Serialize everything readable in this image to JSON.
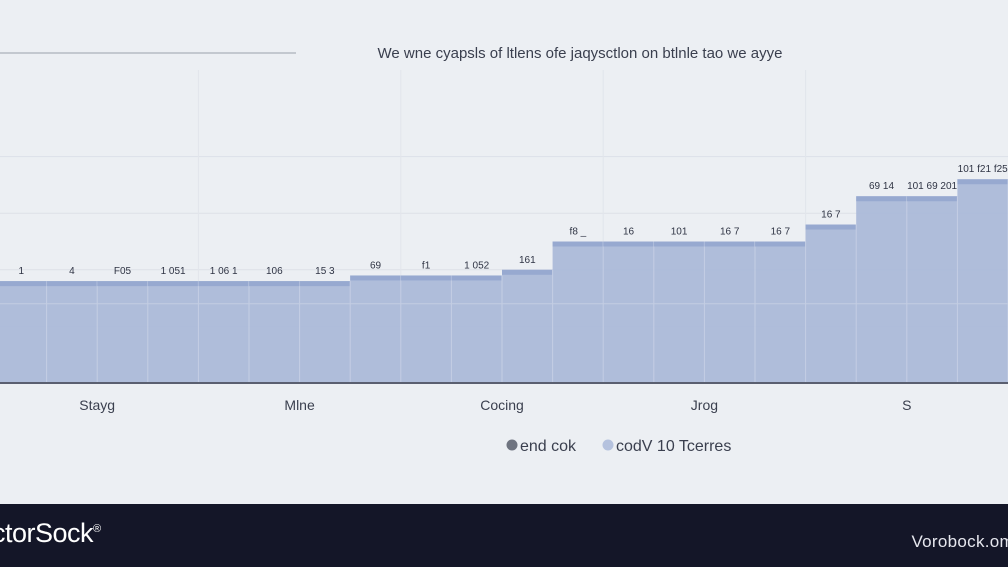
{
  "chart_data": {
    "type": "area",
    "title": "We wne cyapsls of ltlens ofe jaqysctlon on btlnle tao we ayye",
    "categories": [
      "Stayg",
      "Mlne",
      "Cocing",
      "Jrog",
      "S"
    ],
    "ylim": [
      0,
      100
    ],
    "grid": true,
    "legend_position": "bottom",
    "legend": [
      {
        "label": "end cok",
        "color": "#6f7480"
      },
      {
        "label": "codV 10 Tcerres",
        "color": "#a9b8d8"
      }
    ],
    "series": [
      {
        "name": "codV 10 Tcerres",
        "x": [
          0,
          1,
          2,
          3,
          4,
          5,
          6,
          7,
          8,
          9,
          10,
          11,
          12,
          13,
          14,
          15,
          16,
          17,
          18,
          19
        ],
        "values": [
          36,
          36,
          36,
          36,
          36,
          36,
          36,
          38,
          38,
          38,
          40,
          50,
          50,
          50,
          50,
          50,
          56,
          66,
          66,
          72
        ]
      }
    ],
    "data_labels": [
      "1",
      "4",
      "F05",
      "1 051",
      "1 06 1",
      "106",
      "15 3",
      "69",
      "f1",
      "1 052",
      "161",
      "f8 _",
      "16",
      "101",
      "16 7",
      "16 7",
      "16 7",
      "69 14",
      "101 69 201",
      "101 f21 f25"
    ]
  },
  "footer": {
    "brand": "ctorSock",
    "brand_mark": "®",
    "url": "Vorobock.om"
  },
  "colors": {
    "area_fill": "#a9b8d8",
    "area_edge": "#8fa3cc",
    "axis": "#5a5f70",
    "background": "#eceff3",
    "footer_bg": "#141628"
  }
}
